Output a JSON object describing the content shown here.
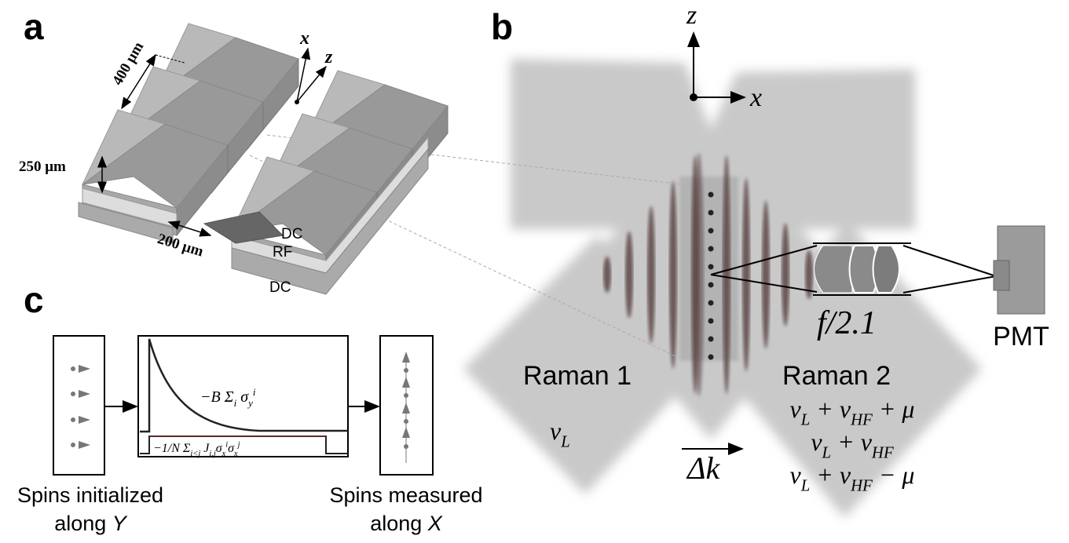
{
  "panel_labels": [
    "a",
    "b",
    "c"
  ],
  "panel_a": {
    "dimensions": [
      "400 μm",
      "250 μm",
      "200 μm"
    ],
    "axes": [
      "x",
      "z"
    ],
    "electrodes": [
      "DC",
      "RF",
      "DC"
    ]
  },
  "panel_b": {
    "axes": [
      "z",
      "x"
    ],
    "lens": "f/2.1",
    "detector": "PMT",
    "beam1": {
      "name": "Raman 1",
      "frequency": [
        "ν",
        {
          "sub": "L"
        }
      ]
    },
    "beam2": {
      "name": "Raman 2",
      "frequencies": [
        [
          "ν",
          {
            "sub": "L"
          },
          " + ν",
          {
            "sub": "HF"
          },
          " + μ"
        ],
        [
          "ν",
          {
            "sub": "L"
          },
          " + ν",
          {
            "sub": "HF"
          }
        ],
        [
          "ν",
          {
            "sub": "L"
          },
          " + ν",
          {
            "sub": "HF"
          },
          " − μ"
        ]
      ]
    },
    "wavevector": "Δk"
  },
  "panel_c": {
    "field_term": [
      "−B Σ",
      {
        "sub": "i"
      },
      " σ",
      {
        "sub": "y"
      },
      {
        "sup": "i"
      }
    ],
    "interaction_term": [
      "−1/N Σ",
      {
        "sub": "i<j"
      },
      " J",
      {
        "sub": "i,j"
      },
      "σ",
      {
        "sub": "x"
      },
      {
        "sup": "i"
      },
      "σ",
      {
        "sub": "x"
      },
      {
        "sup": "j"
      }
    ],
    "initial": {
      "line1": "Spins initialized",
      "line2": "along",
      "axis": "Y"
    },
    "final": {
      "line1": "Spins measured",
      "line2": "along",
      "axis": "X"
    }
  }
}
